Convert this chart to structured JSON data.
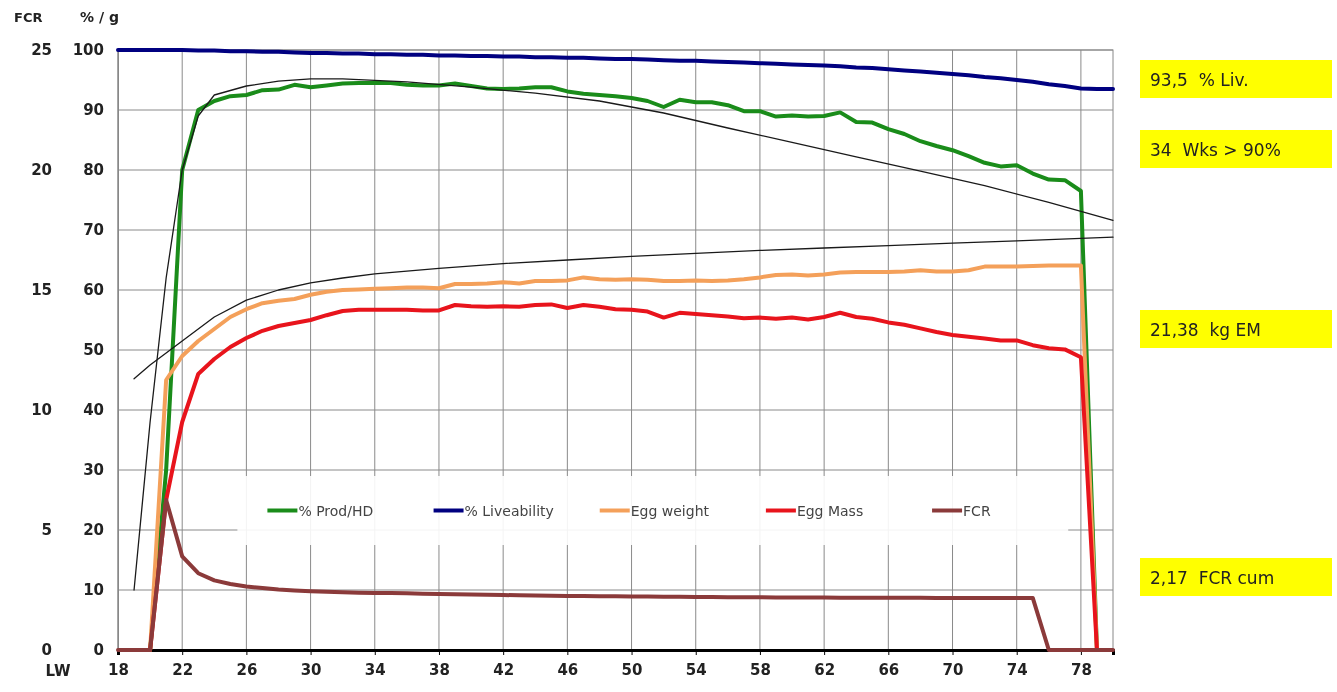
{
  "chart_data": {
    "type": "line",
    "xlabel": "LW",
    "ylabel": "% / g",
    "y2label": "FCR",
    "x": [
      18,
      19,
      20,
      21,
      22,
      23,
      24,
      25,
      26,
      27,
      28,
      29,
      30,
      31,
      32,
      33,
      34,
      35,
      36,
      37,
      38,
      39,
      40,
      41,
      42,
      43,
      44,
      45,
      46,
      47,
      48,
      49,
      50,
      51,
      52,
      53,
      54,
      55,
      56,
      57,
      58,
      59,
      60,
      61,
      62,
      63,
      64,
      65,
      66,
      67,
      68,
      69,
      70,
      71,
      72,
      73,
      74,
      75,
      76,
      77,
      78,
      79,
      80
    ],
    "xlim": [
      18,
      80
    ],
    "xticks": [
      18,
      22,
      26,
      30,
      34,
      38,
      42,
      46,
      50,
      54,
      58,
      62,
      66,
      70,
      74,
      78
    ],
    "ylim": [
      0,
      100
    ],
    "yticks": [
      0,
      10,
      20,
      30,
      40,
      50,
      60,
      70,
      80,
      90,
      100
    ],
    "y2lim": [
      0,
      25
    ],
    "y2ticks": [
      0,
      5,
      10,
      15,
      20,
      25
    ],
    "grid": true,
    "legend": "bottom",
    "line_style": "solid",
    "marker": "none",
    "series": [
      {
        "name": "% Prod/HD",
        "color": "#1a8c1a",
        "values": [
          null,
          null,
          0,
          30,
          80,
          90,
          91.5,
          92.3,
          92.5,
          93.3,
          93.4,
          94.2,
          93.8,
          94.1,
          94.4,
          94.5,
          94.5,
          94.5,
          94.2,
          94.1,
          94.1,
          94.4,
          94.0,
          93.6,
          93.5,
          93.6,
          93.8,
          93.8,
          93.1,
          92.7,
          92.5,
          92.3,
          92.0,
          91.5,
          90.5,
          91.7,
          91.3,
          91.3,
          90.8,
          89.8,
          89.8,
          88.9,
          89.1,
          88.9,
          89.0,
          89.6,
          88.0,
          87.9,
          86.8,
          86.0,
          84.8,
          84.0,
          83.3,
          82.3,
          81.2,
          80.6,
          80.8,
          79.4,
          78.4,
          78.3,
          76.5,
          0,
          null
        ]
      },
      {
        "name": "% Liveability",
        "color": "#000080",
        "values": [
          100,
          100,
          100,
          100,
          100,
          99.9,
          99.9,
          99.8,
          99.8,
          99.7,
          99.7,
          99.6,
          99.5,
          99.5,
          99.4,
          99.4,
          99.3,
          99.3,
          99.2,
          99.2,
          99.1,
          99.1,
          99.0,
          99.0,
          98.9,
          98.9,
          98.8,
          98.8,
          98.7,
          98.7,
          98.6,
          98.5,
          98.5,
          98.4,
          98.3,
          98.2,
          98.2,
          98.1,
          98.0,
          97.9,
          97.8,
          97.7,
          97.6,
          97.5,
          97.4,
          97.3,
          97.1,
          97.0,
          96.8,
          96.6,
          96.4,
          96.2,
          96.0,
          95.8,
          95.5,
          95.3,
          95.0,
          94.7,
          94.3,
          94.0,
          93.6,
          93.5,
          93.5
        ]
      },
      {
        "name": "Egg weight",
        "color": "#f4a05a",
        "values": [
          null,
          null,
          0,
          45,
          49,
          51.5,
          53.5,
          55.5,
          56.8,
          57.8,
          58.2,
          58.5,
          59.2,
          59.7,
          60.0,
          60.1,
          60.2,
          60.3,
          60.4,
          60.4,
          60.3,
          61.0,
          61.0,
          61.1,
          61.3,
          61.1,
          61.5,
          61.5,
          61.6,
          62.1,
          61.8,
          61.7,
          61.8,
          61.7,
          61.5,
          61.5,
          61.6,
          61.5,
          61.6,
          61.8,
          62.1,
          62.5,
          62.6,
          62.4,
          62.6,
          62.9,
          63.0,
          63.0,
          63.0,
          63.1,
          63.3,
          63.1,
          63.1,
          63.3,
          63.9,
          63.9,
          63.9,
          64.0,
          64.1,
          64.1,
          64.1,
          0,
          null
        ]
      },
      {
        "name": "Egg Mass",
        "color": "#e8141c",
        "values": [
          null,
          null,
          0,
          25,
          38,
          46,
          48.5,
          50.5,
          52,
          53.2,
          54,
          54.5,
          55,
          55.8,
          56.5,
          56.7,
          56.7,
          56.7,
          56.7,
          56.6,
          56.6,
          57.5,
          57.3,
          57.2,
          57.3,
          57.2,
          57.5,
          57.6,
          57.0,
          57.5,
          57.2,
          56.8,
          56.7,
          56.4,
          55.4,
          56.2,
          56.0,
          55.8,
          55.6,
          55.3,
          55.4,
          55.2,
          55.4,
          55.1,
          55.5,
          56.2,
          55.5,
          55.2,
          54.6,
          54.2,
          53.6,
          53.0,
          52.5,
          52.2,
          51.9,
          51.6,
          51.6,
          50.8,
          50.3,
          50.1,
          48.8,
          0,
          null
        ]
      },
      {
        "name": "FCR",
        "color": "#8b3a3a",
        "axis": "y2",
        "values": [
          0,
          0,
          0,
          6.25,
          3.9,
          3.2,
          2.9,
          2.75,
          2.65,
          2.58,
          2.52,
          2.48,
          2.45,
          2.43,
          2.41,
          2.39,
          2.38,
          2.37,
          2.36,
          2.34,
          2.33,
          2.32,
          2.31,
          2.3,
          2.29,
          2.28,
          2.27,
          2.26,
          2.25,
          2.25,
          2.24,
          2.24,
          2.23,
          2.23,
          2.22,
          2.22,
          2.21,
          2.21,
          2.2,
          2.2,
          2.2,
          2.19,
          2.19,
          2.19,
          2.19,
          2.18,
          2.18,
          2.18,
          2.18,
          2.18,
          2.18,
          2.17,
          2.17,
          2.17,
          2.17,
          2.17,
          2.17,
          2.17,
          0,
          0,
          0,
          0,
          0
        ]
      },
      {
        "color": "#1a1a1a",
        "x": [
          19,
          20,
          21,
          22,
          23,
          24,
          26,
          28,
          30,
          32,
          36,
          40,
          44,
          48,
          52,
          56,
          60,
          64,
          68,
          72,
          76,
          80
        ],
        "values": [
          10,
          38,
          62,
          80,
          89,
          92.5,
          94,
          94.8,
          95.2,
          95.2,
          94.7,
          93.8,
          92.8,
          91.5,
          89.5,
          87,
          84.6,
          82.2,
          79.8,
          77.4,
          74.6,
          71.6
        ]
      },
      {
        "color": "#1a1a1a",
        "x": [
          19,
          20,
          22,
          24,
          26,
          28,
          30,
          32,
          34,
          38,
          42,
          46,
          50,
          54,
          58,
          62,
          66,
          70,
          74,
          78,
          80
        ],
        "values": [
          45.2,
          47.5,
          51.5,
          55.5,
          58.3,
          60,
          61.2,
          62,
          62.7,
          63.6,
          64.4,
          65,
          65.6,
          66.1,
          66.6,
          67,
          67.4,
          67.8,
          68.2,
          68.6,
          68.8
        ]
      }
    ],
    "annotations": [
      "93,5  % Liv.",
      "34  Wks > 90%",
      "21,38  kg EM",
      "2,17  FCR cum"
    ]
  }
}
